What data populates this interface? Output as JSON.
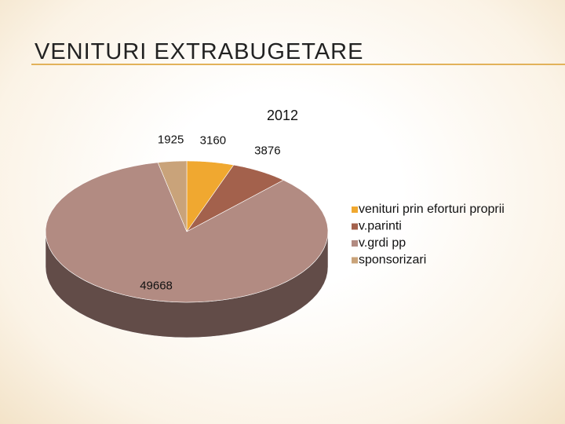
{
  "header": {
    "title": "VENITURI EXTRABUGETARE"
  },
  "chart_data": {
    "type": "pie3d",
    "title": "2012",
    "categories": [
      "venituri prin eforturi proprii",
      "v.parinti",
      "v.grdi pp",
      "sponsorizari"
    ],
    "values": [
      3160,
      3876,
      49668,
      1925
    ],
    "colors": [
      "#f0a830",
      "#a3614c",
      "#b28b82",
      "#c9a37a"
    ],
    "legend": "right"
  }
}
